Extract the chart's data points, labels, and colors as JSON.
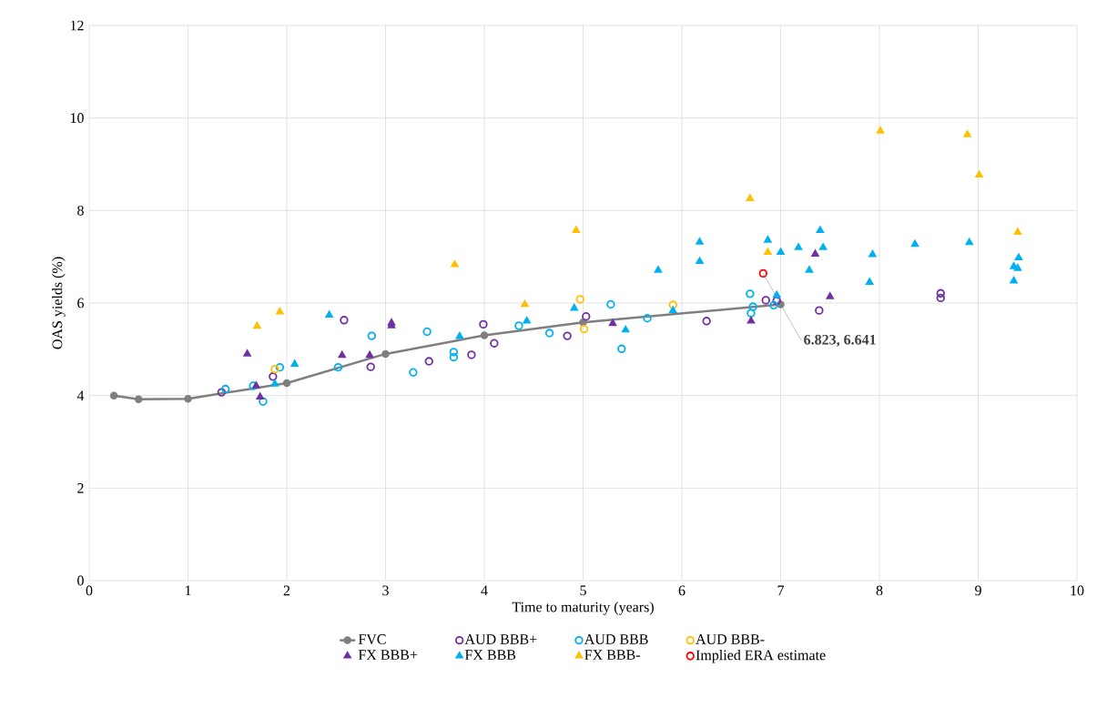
{
  "chart_data": {
    "type": "scatter",
    "xlabel": "Time to maturity (years)",
    "ylabel": "OAS yields (%)",
    "xlim": [
      0,
      10
    ],
    "ylim": [
      0,
      12
    ],
    "xticks": [
      0,
      1,
      2,
      3,
      4,
      5,
      6,
      7,
      8,
      9,
      10
    ],
    "yticks": [
      0,
      2,
      4,
      6,
      8,
      10,
      12
    ],
    "grid": true,
    "legend": "bottom",
    "annotations": [
      {
        "text": "6.823, 6.641",
        "x": 6.823,
        "y": 6.641
      }
    ],
    "series": [
      {
        "name": "FVC",
        "type": "line",
        "marker": "circle",
        "color": "#7f7f7f",
        "x": [
          0.25,
          0.5,
          1,
          2,
          3,
          4,
          5,
          7
        ],
        "values": [
          4.0,
          3.92,
          3.93,
          4.27,
          4.9,
          5.3,
          5.58,
          5.97
        ]
      },
      {
        "name": "AUD BBB+",
        "marker": "circle",
        "color": "#7030a0",
        "x": [
          1.34,
          1.86,
          2.58,
          2.85,
          3.44,
          3.87,
          3.99,
          4.1,
          4.84,
          5.03,
          6.25,
          6.85,
          6.96,
          7.39,
          8.62,
          8.62
        ],
        "values": [
          4.07,
          4.41,
          5.63,
          4.62,
          4.74,
          4.88,
          5.54,
          5.13,
          5.29,
          5.71,
          5.61,
          6.06,
          6.05,
          5.84,
          6.21,
          6.11
        ]
      },
      {
        "name": "AUD BBB",
        "marker": "circle",
        "color": "#00b0f0",
        "x": [
          1.38,
          1.66,
          1.76,
          1.93,
          2.52,
          2.86,
          3.28,
          3.42,
          3.69,
          3.69,
          4.35,
          4.66,
          5.28,
          5.39,
          5.65,
          6.69,
          6.72,
          6.7,
          6.93
        ],
        "values": [
          4.14,
          4.21,
          3.87,
          4.61,
          4.61,
          5.29,
          4.5,
          5.38,
          4.94,
          4.83,
          5.51,
          5.35,
          5.97,
          5.01,
          5.67,
          6.2,
          5.92,
          5.78,
          5.95
        ]
      },
      {
        "name": "AUD BBB-",
        "marker": "circle",
        "color": "#ffc000",
        "x": [
          1.88,
          4.97,
          5.01,
          5.91
        ],
        "values": [
          4.57,
          6.08,
          5.44,
          5.96
        ]
      },
      {
        "name": "FX BBB+",
        "marker": "triangle",
        "color": "#7030a0",
        "x": [
          1.6,
          1.69,
          1.73,
          2.56,
          2.84,
          3.06,
          3.06,
          5.3,
          6.7,
          7.35,
          7.5
        ],
        "values": [
          4.9,
          4.21,
          3.97,
          4.87,
          4.87,
          5.57,
          5.51,
          5.56,
          5.61,
          7.06,
          6.14
        ]
      },
      {
        "name": "FX BBB",
        "marker": "triangle",
        "color": "#00b0f0",
        "x": [
          1.88,
          2.08,
          2.43,
          3.75,
          4.43,
          4.91,
          5.43,
          5.76,
          5.91,
          6.18,
          6.18,
          6.87,
          6.96,
          7.0,
          7.18,
          7.29,
          7.4,
          7.43,
          7.9,
          7.93,
          8.36,
          8.91,
          9.36,
          9.4,
          9.41,
          9.36
        ],
        "values": [
          4.25,
          4.68,
          5.74,
          5.28,
          5.61,
          5.89,
          5.42,
          6.71,
          5.84,
          7.32,
          6.9,
          7.36,
          6.17,
          7.1,
          7.2,
          6.71,
          7.57,
          7.2,
          6.45,
          7.05,
          7.27,
          7.31,
          6.79,
          6.75,
          6.98,
          6.48
        ]
      },
      {
        "name": "FX BBB-",
        "marker": "triangle",
        "color": "#ffc000",
        "x": [
          1.7,
          1.93,
          3.7,
          4.41,
          4.93,
          6.69,
          6.87,
          8.01,
          8.89,
          9.01,
          9.4
        ],
        "values": [
          5.5,
          5.81,
          6.83,
          5.97,
          7.57,
          8.26,
          7.1,
          9.72,
          9.64,
          8.77,
          7.53
        ]
      },
      {
        "name": "Implied ERA estimate",
        "marker": "circle",
        "color": "#ff0000",
        "x": [
          6.823
        ],
        "values": [
          6.641
        ]
      }
    ]
  }
}
